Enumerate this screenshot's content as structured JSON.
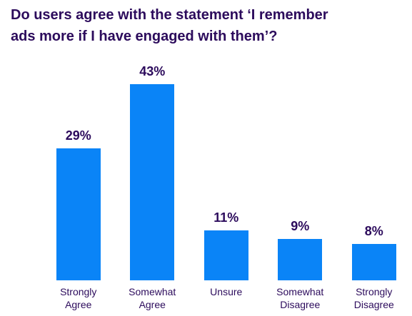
{
  "chart_data": {
    "type": "bar",
    "title": "Do users agree with the statement ‘I remember ads more if I have engaged with them’?",
    "categories": [
      "Strongly Agree",
      "Somewhat Agree",
      "Unsure",
      "Somewhat Disagree",
      "Strongly Disagree"
    ],
    "values": [
      29,
      43,
      11,
      9,
      8
    ],
    "value_labels": [
      "29%",
      "43%",
      "11%",
      "9%",
      "8%"
    ],
    "color": "#0a84f7"
  }
}
